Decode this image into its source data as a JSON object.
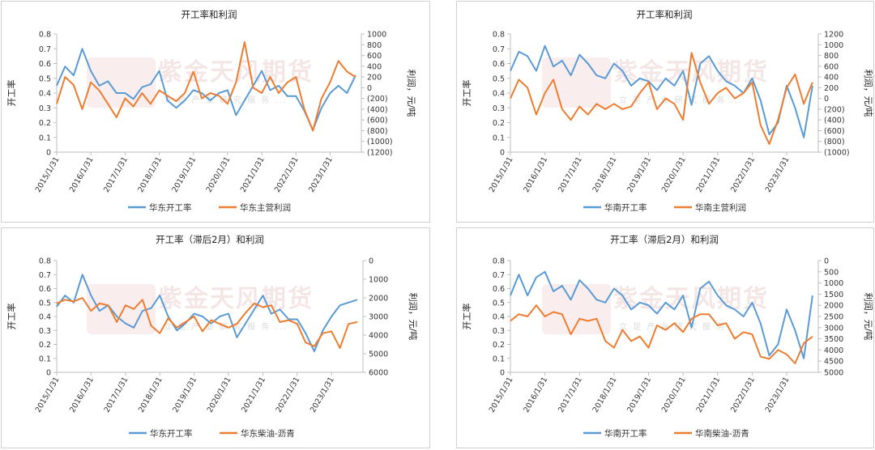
{
  "chart_data": [
    {
      "type": "line",
      "title": "开工率和利润",
      "ylabel": "开工率",
      "y2label": "利润，元/吨",
      "ylim": [
        0,
        0.8
      ],
      "y2lim": [
        -1200,
        1000
      ],
      "yticks": [
        "0",
        "0.1",
        "0.2",
        "0.3",
        "0.4",
        "0.5",
        "0.6",
        "0.7",
        "0.8"
      ],
      "y2ticks": [
        "(1200)",
        "(1000)",
        "(800)",
        "(600)",
        "(400)",
        "(200)",
        "0",
        "200",
        "400",
        "600",
        "800",
        "1000"
      ],
      "y2neg_color": "#e03c31",
      "xlim": [
        "2015/1/31",
        "2023/12/31"
      ],
      "xticks": [
        "2015/1/31",
        "2016/1/31",
        "2017/1/31",
        "2018/1/31",
        "2019/1/31",
        "2020/1/31",
        "2021/1/31",
        "2022/1/31",
        "2023/1/31"
      ],
      "legend": "bottom",
      "grid": false,
      "series": [
        {
          "name": "华东开工率",
          "axis": "left",
          "color": "#5b9bd5",
          "x": [
            "2015/1/31",
            "2015/4/30",
            "2015/7/31",
            "2015/10/31",
            "2016/1/31",
            "2016/4/30",
            "2016/7/31",
            "2016/10/31",
            "2017/1/31",
            "2017/4/30",
            "2017/7/31",
            "2017/10/31",
            "2018/1/31",
            "2018/4/30",
            "2018/7/31",
            "2018/10/31",
            "2019/1/31",
            "2019/4/30",
            "2019/7/31",
            "2019/10/31",
            "2020/1/31",
            "2020/4/30",
            "2020/7/31",
            "2020/10/31",
            "2021/1/31",
            "2021/4/30",
            "2021/7/31",
            "2021/10/31",
            "2022/1/31",
            "2022/4/30",
            "2022/7/31",
            "2022/10/31",
            "2023/1/31",
            "2023/4/30",
            "2023/7/31",
            "2023/10/31"
          ],
          "values": [
            0.45,
            0.58,
            0.52,
            0.7,
            0.55,
            0.45,
            0.48,
            0.4,
            0.4,
            0.36,
            0.44,
            0.46,
            0.55,
            0.35,
            0.3,
            0.35,
            0.42,
            0.4,
            0.35,
            0.4,
            0.42,
            0.25,
            0.35,
            0.45,
            0.55,
            0.42,
            0.45,
            0.38,
            0.38,
            0.28,
            0.15,
            0.3,
            0.4,
            0.45,
            0.4,
            0.52
          ]
        },
        {
          "name": "华东主营利润",
          "axis": "right",
          "color": "#ed7d31",
          "x": [
            "2015/1/31",
            "2015/4/30",
            "2015/7/31",
            "2015/10/31",
            "2016/1/31",
            "2016/4/30",
            "2016/7/31",
            "2016/10/31",
            "2017/1/31",
            "2017/4/30",
            "2017/7/31",
            "2017/10/31",
            "2018/1/31",
            "2018/4/30",
            "2018/7/31",
            "2018/10/31",
            "2019/1/31",
            "2019/4/30",
            "2019/7/31",
            "2019/10/31",
            "2020/1/31",
            "2020/4/30",
            "2020/7/31",
            "2020/10/31",
            "2021/1/31",
            "2021/4/30",
            "2021/7/31",
            "2021/10/31",
            "2022/1/31",
            "2022/4/30",
            "2022/7/31",
            "2022/10/31",
            "2023/1/31",
            "2023/4/30",
            "2023/7/31",
            "2023/10/31"
          ],
          "values": [
            -300,
            200,
            50,
            -400,
            100,
            -50,
            -300,
            -550,
            -200,
            -350,
            -100,
            -300,
            -50,
            -150,
            -250,
            -100,
            300,
            -200,
            -100,
            -150,
            -300,
            100,
            850,
            0,
            -100,
            200,
            -100,
            100,
            200,
            -400,
            -800,
            -200,
            100,
            500,
            300,
            200
          ]
        }
      ]
    },
    {
      "type": "line",
      "title": "开工率和利润",
      "ylabel": "开工率",
      "y2label": "利润，元/吨",
      "ylim": [
        0,
        0.8
      ],
      "y2lim": [
        -1000,
        1200
      ],
      "yticks": [
        "0",
        "0.1",
        "0.2",
        "0.3",
        "0.4",
        "0.5",
        "0.6",
        "0.7",
        "0.8"
      ],
      "y2ticks": [
        "(1000)",
        "(800)",
        "(600)",
        "(400)",
        "(200)",
        "0",
        "200",
        "400",
        "600",
        "800",
        "1000",
        "1200"
      ],
      "y2neg_color": "#e03c31",
      "xlim": [
        "2015/1/31",
        "2023/12/31"
      ],
      "xticks": [
        "2015/1/31",
        "2016/1/31",
        "2017/1/31",
        "2018/1/31",
        "2019/1/31",
        "2020/1/31",
        "2021/1/31",
        "2022/1/31",
        "2023/1/31"
      ],
      "legend": "bottom",
      "grid": false,
      "series": [
        {
          "name": "华南开工率",
          "axis": "left",
          "color": "#5b9bd5",
          "x": [
            "2015/1/31",
            "2015/4/30",
            "2015/7/31",
            "2015/10/31",
            "2016/1/31",
            "2016/4/30",
            "2016/7/31",
            "2016/10/31",
            "2017/1/31",
            "2017/4/30",
            "2017/7/31",
            "2017/10/31",
            "2018/1/31",
            "2018/4/30",
            "2018/7/31",
            "2018/10/31",
            "2019/1/31",
            "2019/4/30",
            "2019/7/31",
            "2019/10/31",
            "2020/1/31",
            "2020/4/30",
            "2020/7/31",
            "2020/10/31",
            "2021/1/31",
            "2021/4/30",
            "2021/7/31",
            "2021/10/31",
            "2022/1/31",
            "2022/4/30",
            "2022/7/31",
            "2022/10/31",
            "2023/1/31",
            "2023/4/30",
            "2023/7/31",
            "2023/10/31"
          ],
          "values": [
            0.55,
            0.68,
            0.65,
            0.55,
            0.72,
            0.58,
            0.62,
            0.52,
            0.66,
            0.6,
            0.52,
            0.5,
            0.6,
            0.55,
            0.45,
            0.5,
            0.48,
            0.42,
            0.5,
            0.45,
            0.55,
            0.32,
            0.6,
            0.65,
            0.55,
            0.48,
            0.45,
            0.4,
            0.5,
            0.35,
            0.12,
            0.2,
            0.45,
            0.3,
            0.1,
            0.45
          ]
        },
        {
          "name": "华南主营利润",
          "axis": "right",
          "color": "#ed7d31",
          "x": [
            "2015/1/31",
            "2015/4/30",
            "2015/7/31",
            "2015/10/31",
            "2016/1/31",
            "2016/4/30",
            "2016/7/31",
            "2016/10/31",
            "2017/1/31",
            "2017/4/30",
            "2017/7/31",
            "2017/10/31",
            "2018/1/31",
            "2018/4/30",
            "2018/7/31",
            "2018/10/31",
            "2019/1/31",
            "2019/4/30",
            "2019/7/31",
            "2019/10/31",
            "2020/1/31",
            "2020/4/30",
            "2020/7/31",
            "2020/10/31",
            "2021/1/31",
            "2021/4/30",
            "2021/7/31",
            "2021/10/31",
            "2022/1/31",
            "2022/4/30",
            "2022/7/31",
            "2022/10/31",
            "2023/1/31",
            "2023/4/30",
            "2023/7/31",
            "2023/10/31"
          ],
          "values": [
            0,
            350,
            200,
            -300,
            100,
            350,
            -200,
            -400,
            -150,
            -300,
            -100,
            -200,
            -100,
            -200,
            -150,
            100,
            300,
            -200,
            0,
            -100,
            -400,
            850,
            300,
            -100,
            100,
            200,
            0,
            100,
            300,
            -500,
            -850,
            -400,
            200,
            450,
            -100,
            300
          ]
        }
      ]
    },
    {
      "type": "line",
      "title": "开工率（滞后2月）和利润",
      "ylabel": "开工率",
      "y2label": "利润，元/吨",
      "ylim": [
        0,
        0.8
      ],
      "y2lim": [
        6000,
        0
      ],
      "yticks": [
        "0",
        "0.1",
        "0.2",
        "0.3",
        "0.4",
        "0.5",
        "0.6",
        "0.7",
        "0.8"
      ],
      "y2ticks": [
        "0",
        "1000",
        "2000",
        "3000",
        "4000",
        "5000",
        "6000"
      ],
      "xlim": [
        "2015/1/31",
        "2023/12/31"
      ],
      "xticks": [
        "2015/1/31",
        "2016/1/31",
        "2017/1/31",
        "2018/1/31",
        "2019/1/31",
        "2020/1/31",
        "2021/1/31",
        "2022/1/31",
        "2023/1/31"
      ],
      "legend": "bottom",
      "grid": false,
      "series": [
        {
          "name": "华东开工率",
          "axis": "left",
          "color": "#5b9bd5",
          "x": [
            "2015/1/31",
            "2015/4/30",
            "2015/7/31",
            "2015/10/31",
            "2016/1/31",
            "2016/4/30",
            "2016/7/31",
            "2016/10/31",
            "2017/1/31",
            "2017/4/30",
            "2017/7/31",
            "2017/10/31",
            "2018/1/31",
            "2018/4/30",
            "2018/7/31",
            "2018/10/31",
            "2019/1/31",
            "2019/4/30",
            "2019/7/31",
            "2019/10/31",
            "2020/1/31",
            "2020/4/30",
            "2020/7/31",
            "2020/10/31",
            "2021/1/31",
            "2021/4/30",
            "2021/7/31",
            "2021/10/31",
            "2022/1/31",
            "2022/4/30",
            "2022/7/31",
            "2022/10/31",
            "2023/1/31",
            "2023/4/30",
            "2023/7/31",
            "2023/10/31"
          ],
          "values": [
            0.47,
            0.55,
            0.5,
            0.7,
            0.55,
            0.44,
            0.48,
            0.4,
            0.35,
            0.32,
            0.44,
            0.46,
            0.55,
            0.4,
            0.3,
            0.35,
            0.42,
            0.4,
            0.35,
            0.4,
            0.42,
            0.25,
            0.35,
            0.45,
            0.55,
            0.42,
            0.45,
            0.38,
            0.38,
            0.28,
            0.15,
            0.3,
            0.4,
            0.48,
            0.5,
            0.52
          ]
        },
        {
          "name": "华东柴油-沥青",
          "axis": "right",
          "color": "#ed7d31",
          "x": [
            "2015/1/31",
            "2015/4/30",
            "2015/7/31",
            "2015/10/31",
            "2016/1/31",
            "2016/4/30",
            "2016/7/31",
            "2016/10/31",
            "2017/1/31",
            "2017/4/30",
            "2017/7/31",
            "2017/10/31",
            "2018/1/31",
            "2018/4/30",
            "2018/7/31",
            "2018/10/31",
            "2019/1/31",
            "2019/4/30",
            "2019/7/31",
            "2019/10/31",
            "2020/1/31",
            "2020/4/30",
            "2020/7/31",
            "2020/10/31",
            "2021/1/31",
            "2021/4/30",
            "2021/7/31",
            "2021/10/31",
            "2022/1/31",
            "2022/4/30",
            "2022/7/31",
            "2022/10/31",
            "2023/1/31",
            "2023/4/30",
            "2023/7/31",
            "2023/10/31"
          ],
          "values": [
            2300,
            2100,
            2200,
            2000,
            2700,
            2300,
            2400,
            3300,
            2400,
            2600,
            2100,
            3500,
            3900,
            3100,
            3600,
            3300,
            3000,
            3800,
            3200,
            3400,
            3600,
            3400,
            2800,
            2300,
            2500,
            2400,
            3300,
            3200,
            3400,
            4400,
            4600,
            3900,
            3800,
            4700,
            3400,
            3300
          ]
        }
      ]
    },
    {
      "type": "line",
      "title": "开工率（滞后2月）和利润",
      "ylabel": "开工率",
      "y2label": "利润，元/吨",
      "ylim": [
        0,
        0.8
      ],
      "y2lim": [
        5000,
        0
      ],
      "yticks": [
        "0",
        "0.1",
        "0.2",
        "0.3",
        "0.4",
        "0.5",
        "0.6",
        "0.7",
        "0.8"
      ],
      "y2ticks": [
        "0",
        "500",
        "1000",
        "1500",
        "2000",
        "2500",
        "3000",
        "3500",
        "4000",
        "4500",
        "5000"
      ],
      "xlim": [
        "2015/1/31",
        "2023/12/31"
      ],
      "xticks": [
        "2015/1/31",
        "2016/1/31",
        "2017/1/31",
        "2018/1/31",
        "2019/1/31",
        "2020/1/31",
        "2021/1/31",
        "2022/1/31",
        "2023/1/31"
      ],
      "legend": "bottom",
      "grid": false,
      "series": [
        {
          "name": "华南开工率",
          "axis": "left",
          "color": "#5b9bd5",
          "x": [
            "2015/1/31",
            "2015/4/30",
            "2015/7/31",
            "2015/10/31",
            "2016/1/31",
            "2016/4/30",
            "2016/7/31",
            "2016/10/31",
            "2017/1/31",
            "2017/4/30",
            "2017/7/31",
            "2017/10/31",
            "2018/1/31",
            "2018/4/30",
            "2018/7/31",
            "2018/10/31",
            "2019/1/31",
            "2019/4/30",
            "2019/7/31",
            "2019/10/31",
            "2020/1/31",
            "2020/4/30",
            "2020/7/31",
            "2020/10/31",
            "2021/1/31",
            "2021/4/30",
            "2021/7/31",
            "2021/10/31",
            "2022/1/31",
            "2022/4/30",
            "2022/7/31",
            "2022/10/31",
            "2023/1/31",
            "2023/4/30",
            "2023/7/31",
            "2023/10/31"
          ],
          "values": [
            0.55,
            0.7,
            0.55,
            0.68,
            0.72,
            0.58,
            0.62,
            0.52,
            0.66,
            0.6,
            0.52,
            0.5,
            0.6,
            0.55,
            0.45,
            0.5,
            0.48,
            0.42,
            0.5,
            0.45,
            0.55,
            0.32,
            0.6,
            0.65,
            0.55,
            0.48,
            0.45,
            0.4,
            0.5,
            0.35,
            0.12,
            0.2,
            0.45,
            0.3,
            0.1,
            0.55
          ]
        },
        {
          "name": "华南柴油-沥青",
          "axis": "right",
          "color": "#ed7d31",
          "x": [
            "2015/1/31",
            "2015/4/30",
            "2015/7/31",
            "2015/10/31",
            "2016/1/31",
            "2016/4/30",
            "2016/7/31",
            "2016/10/31",
            "2017/1/31",
            "2017/4/30",
            "2017/7/31",
            "2017/10/31",
            "2018/1/31",
            "2018/4/30",
            "2018/7/31",
            "2018/10/31",
            "2019/1/31",
            "2019/4/30",
            "2019/7/31",
            "2019/10/31",
            "2020/1/31",
            "2020/4/30",
            "2020/7/31",
            "2020/10/31",
            "2021/1/31",
            "2021/4/30",
            "2021/7/31",
            "2021/10/31",
            "2022/1/31",
            "2022/4/30",
            "2022/7/31",
            "2022/10/31",
            "2023/1/31",
            "2023/4/30",
            "2023/7/31",
            "2023/10/31"
          ],
          "values": [
            2700,
            2400,
            2500,
            2000,
            2500,
            2300,
            2400,
            3300,
            2600,
            2700,
            2600,
            3600,
            3900,
            3100,
            3600,
            3400,
            3900,
            2900,
            3100,
            2800,
            3200,
            2600,
            2400,
            2400,
            2900,
            2800,
            3500,
            3200,
            3300,
            4300,
            4400,
            4000,
            4200,
            4600,
            3700,
            3400
          ]
        }
      ]
    }
  ],
  "watermark": {
    "brand": "紫金天风期货",
    "motto": "立 足 产 业 研 究 服 务 ..."
  }
}
